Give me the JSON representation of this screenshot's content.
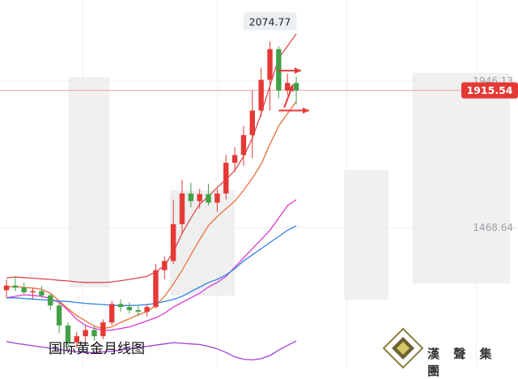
{
  "chart_data": {
    "type": "candlestick",
    "title": "国际黄金月线图",
    "x": [
      1,
      2,
      3,
      4,
      5,
      6,
      7,
      8,
      9,
      10,
      11,
      12,
      13,
      14,
      15,
      16,
      17,
      18,
      19,
      20,
      21,
      22,
      23,
      24,
      25,
      26,
      27,
      28,
      29,
      30,
      31,
      32,
      33,
      34
    ],
    "ohlc": [
      [
        1265,
        1300,
        1240,
        1280
      ],
      [
        1280,
        1310,
        1262,
        1273
      ],
      [
        1273,
        1290,
        1252,
        1258
      ],
      [
        1258,
        1272,
        1238,
        1262
      ],
      [
        1262,
        1278,
        1240,
        1248
      ],
      [
        1248,
        1255,
        1200,
        1215
      ],
      [
        1215,
        1225,
        1125,
        1150
      ],
      [
        1150,
        1160,
        1080,
        1095
      ],
      [
        1095,
        1130,
        1075,
        1115
      ],
      [
        1115,
        1150,
        1100,
        1135
      ],
      [
        1135,
        1150,
        1100,
        1115
      ],
      [
        1115,
        1170,
        1105,
        1160
      ],
      [
        1160,
        1230,
        1150,
        1220
      ],
      [
        1220,
        1235,
        1195,
        1210
      ],
      [
        1210,
        1225,
        1188,
        1200
      ],
      [
        1200,
        1215,
        1180,
        1195
      ],
      [
        1195,
        1220,
        1180,
        1210
      ],
      [
        1210,
        1350,
        1205,
        1330
      ],
      [
        1330,
        1375,
        1300,
        1360
      ],
      [
        1360,
        1560,
        1350,
        1480
      ],
      [
        1480,
        1625,
        1450,
        1580
      ],
      [
        1580,
        1615,
        1535,
        1555
      ],
      [
        1555,
        1595,
        1530,
        1578
      ],
      [
        1578,
        1612,
        1540,
        1550
      ],
      [
        1550,
        1595,
        1520,
        1580
      ],
      [
        1580,
        1705,
        1560,
        1680
      ],
      [
        1680,
        1730,
        1650,
        1705
      ],
      [
        1705,
        1800,
        1670,
        1770
      ],
      [
        1770,
        1915,
        1695,
        1850
      ],
      [
        1850,
        1990,
        1830,
        1950
      ],
      [
        1950,
        2074.77,
        1850,
        2050
      ],
      [
        2050,
        2060,
        1890,
        1915
      ],
      [
        1915,
        1970,
        1900,
        1940
      ],
      [
        1940,
        1960,
        1870,
        1915.54
      ]
    ],
    "lines": [
      {
        "color": "#e8703a",
        "values": [
          1275,
          1277,
          1274,
          1272,
          1268,
          1255,
          1230,
          1205,
          1182,
          1165,
          1148,
          1140,
          1145,
          1160,
          1172,
          1185,
          1195,
          1215,
          1245,
          1285,
          1330,
          1380,
          1430,
          1475,
          1505,
          1530,
          1555,
          1590,
          1630,
          1675,
          1740,
          1800,
          1840,
          1880
        ]
      },
      {
        "color": "#d94a4a",
        "values": [
          1305,
          1308,
          1306,
          1304,
          1302,
          1300,
          1297,
          1295,
          1292,
          1290,
          1290,
          1290,
          1292,
          1296,
          1300,
          1305,
          1310,
          1325,
          1345,
          1390,
          1450,
          1500,
          1545,
          1570,
          1600,
          1625,
          1655,
          1700,
          1760,
          1840,
          1930,
          2020,
          2060,
          2100
        ]
      },
      {
        "color": "#d93bd0",
        "values": [
          1240,
          1245,
          1250,
          1248,
          1245,
          1238,
          1225,
          1200,
          1170,
          1150,
          1140,
          1135,
          1135,
          1140,
          1145,
          1155,
          1165,
          1175,
          1190,
          1210,
          1225,
          1240,
          1255,
          1275,
          1290,
          1310,
          1340,
          1370,
          1400,
          1430,
          1460,
          1500,
          1540,
          1560
        ]
      },
      {
        "color": "#2f7fe8",
        "values": [
          1240,
          1240,
          1238,
          1236,
          1234,
          1232,
          1230,
          1228,
          1225,
          1222,
          1220,
          1218,
          1216,
          1215,
          1215,
          1216,
          1218,
          1222,
          1228,
          1235,
          1245,
          1260,
          1275,
          1290,
          1300,
          1315,
          1335,
          1360,
          1380,
          1400,
          1420,
          1440,
          1460,
          1475
        ]
      },
      {
        "color": "#a03fd6",
        "values": [
          1098,
          1092,
          1088,
          1084,
          1080,
          1076,
          1072,
          1068,
          1064,
          1062,
          1062,
          1064,
          1066,
          1070,
          1074,
          1078,
          1082,
          1086,
          1090,
          1094,
          1092,
          1090,
          1088,
          1082,
          1074,
          1062,
          1048,
          1040,
          1038,
          1042,
          1052,
          1070,
          1085,
          1100
        ]
      }
    ],
    "y_ticks": [
      "1946.13",
      "1468.64"
    ],
    "y_tick_values": [
      1946.13,
      1468.64
    ],
    "current_price": "1915.54",
    "peak_label": "2074.77",
    "ylim": [
      1010,
      2210
    ],
    "colors": {
      "up": "#e53935",
      "down": "#43a047",
      "last_price_bg": "#e53935",
      "arrow": "#e53935"
    }
  },
  "watermark": {
    "brand": "漢 聲 集 團"
  }
}
